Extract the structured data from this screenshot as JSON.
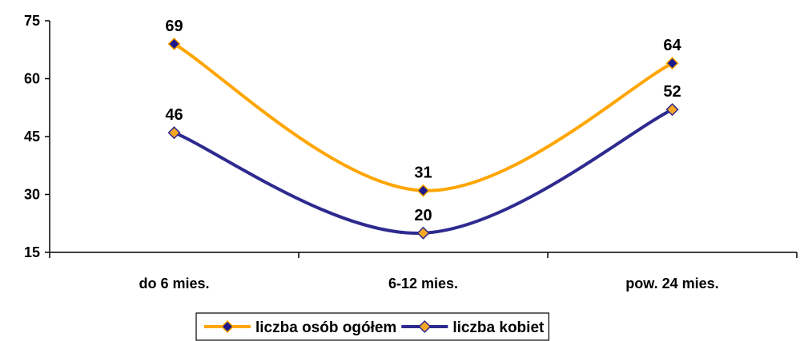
{
  "chart_data": {
    "type": "line",
    "categories": [
      "do 6 mies.",
      "6-12 mies.",
      "pow. 24 mies."
    ],
    "series": [
      {
        "name": "liczba osób ogółem",
        "values": [
          69,
          31,
          64
        ],
        "line_color": "#FFA500",
        "marker_fill": "#1E1A8C",
        "marker_stroke": "#FFA500"
      },
      {
        "name": "liczba kobiet",
        "values": [
          46,
          20,
          52
        ],
        "line_color": "#2E2A8F",
        "marker_fill": "#F5A623",
        "marker_stroke": "#2E2A8F"
      }
    ],
    "y_ticks": [
      15,
      30,
      45,
      60,
      75
    ],
    "ylim": [
      15,
      75
    ],
    "grid": false,
    "title": "",
    "xlabel": "",
    "ylabel": "",
    "legend_position": "bottom-center",
    "smooth_lines": true,
    "data_labels": true
  }
}
